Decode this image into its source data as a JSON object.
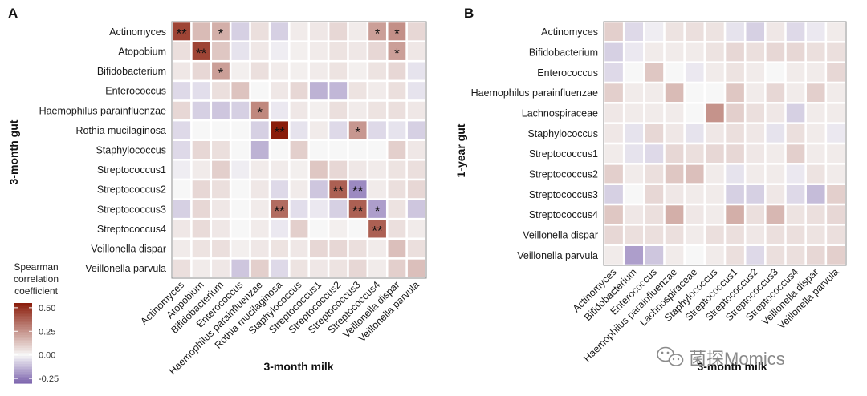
{
  "figure": {
    "watermark": "菌探Momics"
  },
  "colors": {
    "low": "#7b63ad",
    "mid": "#f7f7f7",
    "high": "#8a1c0a",
    "frame": "#8c8c8c"
  },
  "legend": {
    "title_lines": [
      "Spearman",
      "correlation",
      "coefficient"
    ],
    "ticks": [
      "0.50",
      "0.25",
      "0.00",
      "-0.25"
    ],
    "tick_values": [
      0.5,
      0.25,
      0.0,
      -0.25
    ],
    "range": [
      -0.3,
      0.55
    ]
  },
  "chart_data": [
    {
      "type": "heatmap",
      "panel": "A",
      "xlabel": "3-month milk",
      "ylabel": "3-month gut",
      "rows": [
        "Actinomyces",
        "Atopobium",
        "Bifidobacterium",
        "Enterococcus",
        "Haemophilus parainfluenzae",
        "Rothia mucilaginosa",
        "Staphylococcus",
        "Streptococcus1",
        "Streptococcus2",
        "Streptococcus3",
        "Streptococcus4",
        "Veillonella dispar",
        "Veillonella parvula"
      ],
      "cols": [
        "Actinomyces",
        "Atopobium",
        "Bifidobacterium",
        "Enterococcus",
        "Haemophilus parainfluenzae",
        "Rothia mucilaginosa",
        "Staphylococcus",
        "Streptococcus1",
        "Streptococcus2",
        "Streptococcus3",
        "Streptococcus4",
        "Veillonella dispar",
        "Veillonella parvula"
      ],
      "values": [
        [
          0.45,
          0.15,
          0.18,
          -0.08,
          0.06,
          -0.08,
          0.03,
          0.04,
          0.08,
          0.03,
          0.22,
          0.26,
          0.08
        ],
        [
          0.06,
          0.45,
          0.12,
          -0.04,
          0.04,
          -0.02,
          0.02,
          0.03,
          0.05,
          0.04,
          0.08,
          0.22,
          0.04
        ],
        [
          0.04,
          0.08,
          0.22,
          0.02,
          0.06,
          0.03,
          0.02,
          0.03,
          0.05,
          0.02,
          0.05,
          0.08,
          -0.04
        ],
        [
          -0.06,
          -0.05,
          0.06,
          0.13,
          0.0,
          0.04,
          0.08,
          -0.14,
          -0.13,
          0.05,
          0.03,
          0.06,
          -0.04
        ],
        [
          0.08,
          -0.08,
          -0.1,
          -0.08,
          0.28,
          -0.03,
          0.04,
          0.02,
          0.06,
          0.03,
          0.05,
          0.06,
          0.04
        ],
        [
          -0.06,
          0.0,
          0.0,
          0.0,
          -0.08,
          0.55,
          -0.04,
          0.03,
          -0.06,
          0.24,
          -0.06,
          -0.04,
          -0.08
        ],
        [
          -0.06,
          0.08,
          0.06,
          0.0,
          -0.14,
          0.0,
          0.1,
          0.0,
          0.0,
          0.0,
          0.0,
          0.1,
          0.04
        ],
        [
          -0.02,
          0.03,
          0.1,
          -0.02,
          0.03,
          0.03,
          0.02,
          0.12,
          0.08,
          0.04,
          0.03,
          0.05,
          0.06
        ],
        [
          0.0,
          0.08,
          0.06,
          0.0,
          0.04,
          -0.06,
          0.03,
          -0.1,
          0.38,
          -0.22,
          0.03,
          0.06,
          0.08
        ],
        [
          -0.08,
          0.08,
          0.04,
          0.0,
          0.03,
          0.35,
          -0.05,
          -0.03,
          -0.08,
          0.38,
          -0.18,
          0.05,
          -0.1
        ],
        [
          0.04,
          0.07,
          0.04,
          0.0,
          0.03,
          -0.03,
          0.1,
          0.0,
          0.02,
          0.0,
          0.38,
          0.06,
          0.03
        ],
        [
          0.03,
          0.05,
          0.06,
          0.02,
          0.04,
          0.05,
          0.04,
          0.08,
          0.08,
          0.06,
          0.03,
          0.14,
          0.06
        ],
        [
          0.06,
          0.03,
          0.04,
          -0.1,
          0.1,
          -0.06,
          0.05,
          0.04,
          0.05,
          0.08,
          0.03,
          0.1,
          0.14
        ]
      ],
      "significance": [
        [
          "**",
          "",
          "*",
          "",
          "",
          "",
          "",
          "",
          "",
          "",
          "*",
          "*",
          ""
        ],
        [
          "",
          "**",
          "",
          "",
          "",
          "",
          "",
          "",
          "",
          "",
          "",
          "*",
          ""
        ],
        [
          "",
          "",
          "*",
          "",
          "",
          "",
          "",
          "",
          "",
          "",
          "",
          "",
          ""
        ],
        [
          "",
          "",
          "",
          "",
          "",
          "",
          "",
          "",
          "",
          "",
          "",
          "",
          ""
        ],
        [
          "",
          "",
          "",
          "",
          "*",
          "",
          "",
          "",
          "",
          "",
          "",
          "",
          ""
        ],
        [
          "",
          "",
          "",
          "",
          "",
          "**",
          "",
          "",
          "",
          "*",
          "",
          "",
          ""
        ],
        [
          "",
          "",
          "",
          "",
          "",
          "",
          "",
          "",
          "",
          "",
          "",
          "",
          ""
        ],
        [
          "",
          "",
          "",
          "",
          "",
          "",
          "",
          "",
          "",
          "",
          "",
          "",
          ""
        ],
        [
          "",
          "",
          "",
          "",
          "",
          "",
          "",
          "",
          "**",
          "**",
          "",
          "",
          ""
        ],
        [
          "",
          "",
          "",
          "",
          "",
          "**",
          "",
          "",
          "",
          "**",
          "*",
          "",
          ""
        ],
        [
          "",
          "",
          "",
          "",
          "",
          "",
          "",
          "",
          "",
          "",
          "**",
          "",
          ""
        ],
        [
          "",
          "",
          "",
          "",
          "",
          "",
          "",
          "",
          "",
          "",
          "",
          "",
          ""
        ],
        [
          "",
          "",
          "",
          "",
          "",
          "",
          "",
          "",
          "",
          "",
          "",
          "",
          ""
        ]
      ]
    },
    {
      "type": "heatmap",
      "panel": "B",
      "xlabel": "3-month milk",
      "ylabel": "1-year gut",
      "rows": [
        "Actinomyces",
        "Bifidobacterium",
        "Enterococcus",
        "Haemophilus parainfluenzae",
        "Lachnospiraceae",
        "Staphylococcus",
        "Streptococcus1",
        "Streptococcus2",
        "Streptococcus3",
        "Streptococcus4",
        "Veillonella dispar",
        "Veillonella parvula"
      ],
      "cols": [
        "Actinomyces",
        "Bifidobacterium",
        "Enterococcus",
        "Haemophilus parainfluenzae",
        "Lachnospiraceae",
        "Staphylococcus",
        "Streptococcus1",
        "Streptococcus2",
        "Streptococcus3",
        "Streptococcus4",
        "Veillonella dispar",
        "Veillonella parvula"
      ],
      "values": [
        [
          0.1,
          -0.06,
          -0.02,
          0.05,
          0.06,
          0.05,
          -0.04,
          -0.08,
          0.04,
          -0.06,
          -0.03,
          0.03
        ],
        [
          -0.08,
          -0.03,
          0.03,
          0.03,
          0.03,
          0.05,
          0.08,
          0.06,
          0.08,
          0.08,
          0.06,
          0.06
        ],
        [
          -0.06,
          0.0,
          0.12,
          0.0,
          -0.03,
          0.03,
          0.05,
          0.03,
          0.0,
          0.03,
          0.03,
          0.08
        ],
        [
          0.1,
          0.03,
          0.03,
          0.15,
          0.0,
          0.0,
          0.12,
          0.03,
          0.08,
          0.03,
          0.1,
          0.03
        ],
        [
          0.04,
          0.03,
          0.03,
          0.03,
          0.0,
          0.25,
          0.1,
          0.06,
          0.04,
          -0.08,
          0.03,
          0.03
        ],
        [
          0.04,
          -0.04,
          0.08,
          0.04,
          -0.04,
          0.04,
          0.06,
          0.04,
          -0.04,
          0.06,
          0.03,
          -0.03
        ],
        [
          0.03,
          -0.04,
          -0.06,
          0.08,
          0.06,
          0.08,
          0.08,
          0.04,
          0.03,
          0.1,
          0.03,
          0.03
        ],
        [
          0.1,
          0.03,
          0.06,
          0.12,
          0.14,
          0.03,
          -0.04,
          0.03,
          0.03,
          -0.03,
          0.05,
          0.03
        ],
        [
          -0.08,
          0.0,
          0.08,
          0.04,
          0.03,
          0.03,
          -0.08,
          -0.08,
          0.04,
          -0.06,
          -0.12,
          0.1
        ],
        [
          0.12,
          0.04,
          0.06,
          0.18,
          0.04,
          0.03,
          0.18,
          0.06,
          0.16,
          0.05,
          0.06,
          0.08
        ],
        [
          0.08,
          0.06,
          0.06,
          0.06,
          0.03,
          0.06,
          0.06,
          0.04,
          0.06,
          0.06,
          0.05,
          0.06
        ],
        [
          0.03,
          -0.18,
          -0.1,
          0.03,
          0.0,
          0.03,
          0.06,
          -0.06,
          0.06,
          0.06,
          0.08,
          0.1
        ]
      ]
    }
  ]
}
